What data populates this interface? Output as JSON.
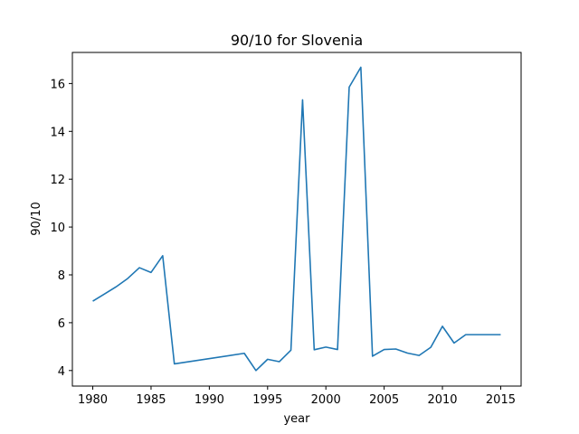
{
  "chart_data": {
    "type": "line",
    "title": "90/10 for Slovenia",
    "xlabel": "year",
    "ylabel": "90/10",
    "xlim": [
      1978.25,
      2016.75
    ],
    "ylim": [
      3.35,
      17.3
    ],
    "x_ticks": [
      1980,
      1985,
      1990,
      1995,
      2000,
      2005,
      2010,
      2015
    ],
    "y_ticks": [
      4,
      6,
      8,
      10,
      12,
      14,
      16
    ],
    "grid": false,
    "legend": "none",
    "series": [
      {
        "color": "#1f77b4",
        "x": [
          1980,
          1981,
          1982,
          1983,
          1984,
          1985,
          1986,
          1987,
          1993,
          1994,
          1995,
          1996,
          1997,
          1998,
          1999,
          2000,
          2001,
          2002,
          2003,
          2004,
          2005,
          2006,
          2007,
          2008,
          2009,
          2010,
          2011,
          2012,
          2013,
          2014,
          2015
        ],
        "y": [
          6.9,
          7.2,
          7.5,
          7.85,
          8.3,
          8.1,
          8.8,
          4.28,
          4.72,
          4.0,
          4.47,
          4.37,
          4.85,
          15.32,
          4.87,
          4.98,
          4.88,
          15.85,
          16.68,
          4.6,
          4.88,
          4.9,
          4.73,
          4.63,
          4.97,
          5.85,
          5.15,
          5.5,
          5.5,
          5.5,
          5.5
        ]
      }
    ]
  }
}
